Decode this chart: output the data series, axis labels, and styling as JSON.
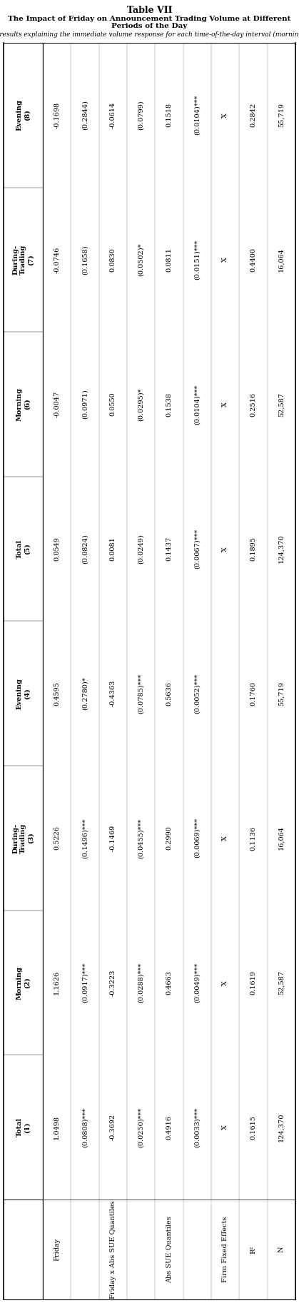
{
  "title": "Table VII",
  "subtitle": "The Impact of Friday on Announcement Trading Volume at Different Periods of the Day",
  "description": "This table presents regression results explaining the immediate volume response for each time-of-the-day interval (morning, during-trading, and evening)",
  "col_headers": [
    "Total\n(1)",
    "Morning\n(2)",
    "During-\nTrading\n(3)",
    "Evening\n(4)",
    "Total\n(5)",
    "Morning\n(6)",
    "During-\nTrading\n(7)",
    "Evening\n(8)"
  ],
  "row_labels": [
    "Friday",
    "",
    "Friday x Abs SUE Quantiles",
    "",
    "Abs SUE Quantiles",
    "",
    "Firm Fixed Effects",
    "R²",
    "N"
  ],
  "data": [
    [
      "1.0498",
      "1.1626",
      "0.5226",
      "0.4595",
      "0.0549",
      "-0.0047",
      "-0.0746",
      "-0.1698"
    ],
    [
      "(0.0808)***",
      "(0.0917)***",
      "(0.1496)***",
      "(0.2780)*",
      "(0.0824)",
      "(0.0971)",
      "(0.1658)",
      "(0.2844)"
    ],
    [
      "-0.3692",
      "-0.3223",
      "-0.1469",
      "-0.4363",
      "0.0081",
      "0.0550",
      "0.0830",
      "-0.0614"
    ],
    [
      "(0.0250)***",
      "(0.0288)***",
      "(0.0455)***",
      "(0.0785)***",
      "(0.0249)",
      "(0.0295)*",
      "(0.0502)*",
      "(0.0799)"
    ],
    [
      "0.4916",
      "0.4663",
      "0.2990",
      "0.5636",
      "0.1437",
      "0.1538",
      "0.0811",
      "0.1518"
    ],
    [
      "(0.0033)***",
      "(0.0049)***",
      "(0.0069)***",
      "(0.0052)***",
      "(0.0067)***",
      "(0.0104)***",
      "(0.0151)***",
      "(0.0104)***"
    ],
    [
      "X",
      "X",
      "X",
      "",
      "X",
      "X",
      "X",
      "X"
    ],
    [
      "0.1615",
      "0.1619",
      "0.1136",
      "0.1760",
      "0.1895",
      "0.2516",
      "0.4400",
      "0.2842"
    ],
    [
      "124,370",
      "52,587",
      "16,064",
      "55,719",
      "124,370",
      "52,587",
      "16,064",
      "55,719"
    ]
  ],
  "bg_color": "#ffffff",
  "text_color": "#000000",
  "header_fontsize": 7.0,
  "data_fontsize": 7.0,
  "title_fontsize": 9.0,
  "subtitle_fontsize": 7.5,
  "desc_fontsize": 6.5
}
